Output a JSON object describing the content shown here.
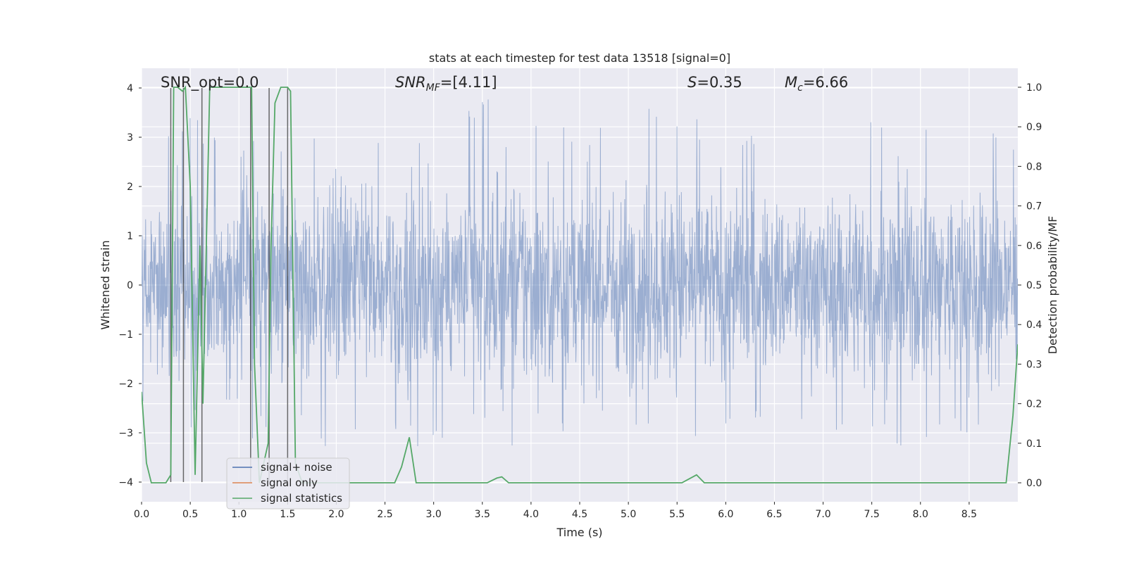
{
  "chart_data": {
    "type": "line",
    "title": "stats at each timestep for test data 13518 [signal=0]",
    "xlabel": "Time (s)",
    "ylabel": "Whitened strain",
    "y2label": "Detection probability/MF",
    "xlim": [
      0.0,
      9.0
    ],
    "ylim": [
      -4.4,
      4.4
    ],
    "y2lim": [
      -0.048,
      1.048
    ],
    "xticks": [
      "0.0",
      "0.5",
      "1.0",
      "1.5",
      "2.0",
      "2.5",
      "3.0",
      "3.5",
      "4.0",
      "4.5",
      "5.0",
      "5.5",
      "6.0",
      "6.5",
      "7.0",
      "7.5",
      "8.0",
      "8.5"
    ],
    "yticks": [
      "−4",
      "−3",
      "−2",
      "−1",
      "0",
      "1",
      "2",
      "3",
      "4"
    ],
    "y2ticks": [
      "0.0",
      "0.1",
      "0.2",
      "0.3",
      "0.4",
      "0.5",
      "0.6",
      "0.7",
      "0.8",
      "0.9",
      "1.0"
    ],
    "grid": true,
    "legend_position": "lower-left",
    "annotations": {
      "snr_opt": "SNR_opt=0.0",
      "snr_mf_main": "SNR",
      "snr_mf_sub": "MF",
      "snr_mf_value": "=[4.11]",
      "s_main": "S",
      "s_value": "=0.35",
      "mc_main": "M",
      "mc_sub": "c",
      "mc_value": "=6.66"
    },
    "series": [
      {
        "name": "signal+ noise",
        "color": "#4c72b0",
        "style": "dense whitened-noise trace",
        "envelope": {
          "x": [
            0.0,
            0.3,
            0.5,
            0.7,
            1.0,
            1.5,
            2.0,
            2.5,
            2.8,
            3.0,
            3.5,
            3.9,
            4.5,
            5.0,
            5.7,
            6.5,
            7.0,
            7.5,
            8.0,
            8.5,
            9.0
          ],
          "upper": [
            2.3,
            3.1,
            3.5,
            3.3,
            3.0,
            2.9,
            3.5,
            2.9,
            3.3,
            3.3,
            3.9,
            3.5,
            3.1,
            3.9,
            3.4,
            3.0,
            3.1,
            3.4,
            3.2,
            3.5,
            3.2
          ],
          "lower": [
            -2.6,
            -2.9,
            -3.0,
            -2.6,
            -3.3,
            -2.9,
            -3.5,
            -2.8,
            -3.3,
            -3.4,
            -2.9,
            -3.9,
            -2.7,
            -2.8,
            -3.1,
            -2.8,
            -2.9,
            -3.1,
            -3.5,
            -3.0,
            -2.8
          ]
        }
      },
      {
        "name": "signal only",
        "color": "#dd8452",
        "x": [],
        "y": []
      },
      {
        "name": "signal statistics",
        "color": "#55a868",
        "axis": "right",
        "x": [
          0.0,
          0.05,
          0.1,
          0.25,
          0.3,
          0.33,
          0.37,
          0.42,
          0.45,
          0.5,
          0.55,
          0.6,
          0.63,
          0.7,
          0.75,
          1.0,
          1.13,
          1.16,
          1.21,
          1.3,
          1.33,
          1.37,
          1.43,
          1.5,
          1.53,
          1.58,
          1.65,
          2.6,
          2.67,
          2.75,
          2.82,
          3.55,
          3.65,
          3.7,
          3.77,
          5.55,
          5.7,
          5.78,
          5.9,
          8.88,
          8.95,
          9.0
        ],
        "y": [
          0.23,
          0.05,
          0.0,
          0.0,
          0.02,
          1.0,
          1.0,
          0.99,
          1.0,
          0.75,
          0.02,
          0.6,
          0.2,
          1.0,
          1.0,
          1.0,
          1.0,
          0.3,
          0.0,
          0.1,
          0.6,
          0.96,
          1.0,
          1.0,
          0.99,
          0.05,
          0.0,
          0.0,
          0.04,
          0.115,
          0.0,
          0.0,
          0.012,
          0.015,
          0.0,
          0.0,
          0.02,
          0.0,
          0.0,
          0.0,
          0.17,
          0.35
        ]
      }
    ],
    "vertical_markers": [
      0.3,
      0.43,
      0.62,
      1.12,
      1.31,
      1.5
    ]
  }
}
